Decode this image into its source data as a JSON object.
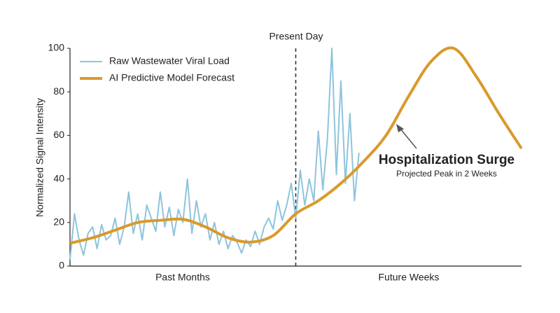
{
  "chart_data": {
    "type": "line",
    "y_label": "Normalized Signal Intensity",
    "ylim": [
      0,
      100
    ],
    "yticks": [
      0,
      20,
      40,
      60,
      80,
      100
    ],
    "xlim": [
      0,
      100
    ],
    "x_regions": [
      "Past Months",
      "Future Weeks"
    ],
    "present_day": {
      "x": 50,
      "label": "Present Day"
    },
    "annotation": {
      "title": "Hospitalization Surge",
      "subtitle": "Projected Peak in 2 Weeks"
    },
    "legend": "upper left",
    "series": [
      {
        "name": "Raw Wastewater Viral Load",
        "color": "#8ec4dd",
        "width": 2,
        "x": [
          0,
          1,
          2,
          3,
          4,
          5,
          6,
          7,
          8,
          9,
          10,
          11,
          12,
          13,
          14,
          15,
          16,
          17,
          18,
          19,
          20,
          21,
          22,
          23,
          24,
          25,
          26,
          27,
          28,
          29,
          30,
          31,
          32,
          33,
          34,
          35,
          36,
          37,
          38,
          39,
          40,
          41,
          42,
          43,
          44,
          45,
          46,
          47,
          48,
          49,
          50,
          51,
          52,
          53,
          54,
          55,
          56,
          57,
          58,
          59,
          60,
          61,
          62,
          63,
          64
        ],
        "values": [
          3,
          24,
          12,
          5,
          15,
          18,
          8,
          19,
          12,
          14,
          22,
          10,
          18,
          34,
          15,
          24,
          12,
          28,
          22,
          16,
          34,
          18,
          27,
          14,
          26,
          20,
          40,
          15,
          30,
          18,
          24,
          12,
          20,
          10,
          16,
          8,
          14,
          11,
          6,
          12,
          9,
          16,
          10,
          18,
          22,
          17,
          30,
          21,
          28,
          38,
          22,
          44,
          28,
          40,
          30,
          62,
          35,
          58,
          100,
          42,
          85,
          38,
          70,
          30,
          52
        ]
      },
      {
        "name": "AI Predictive Model Forecast",
        "color": "#d99a2b",
        "width": 4,
        "x": [
          0,
          5,
          10,
          15,
          20,
          25,
          30,
          35,
          40,
          45,
          50,
          55,
          60,
          65,
          70,
          75,
          80,
          85,
          90,
          95,
          100
        ],
        "values": [
          10.5,
          13,
          16.5,
          20,
          21,
          21.5,
          18,
          13,
          11,
          14,
          24,
          30,
          38,
          48,
          60,
          78,
          94,
          100,
          87,
          70,
          54
        ]
      }
    ]
  }
}
